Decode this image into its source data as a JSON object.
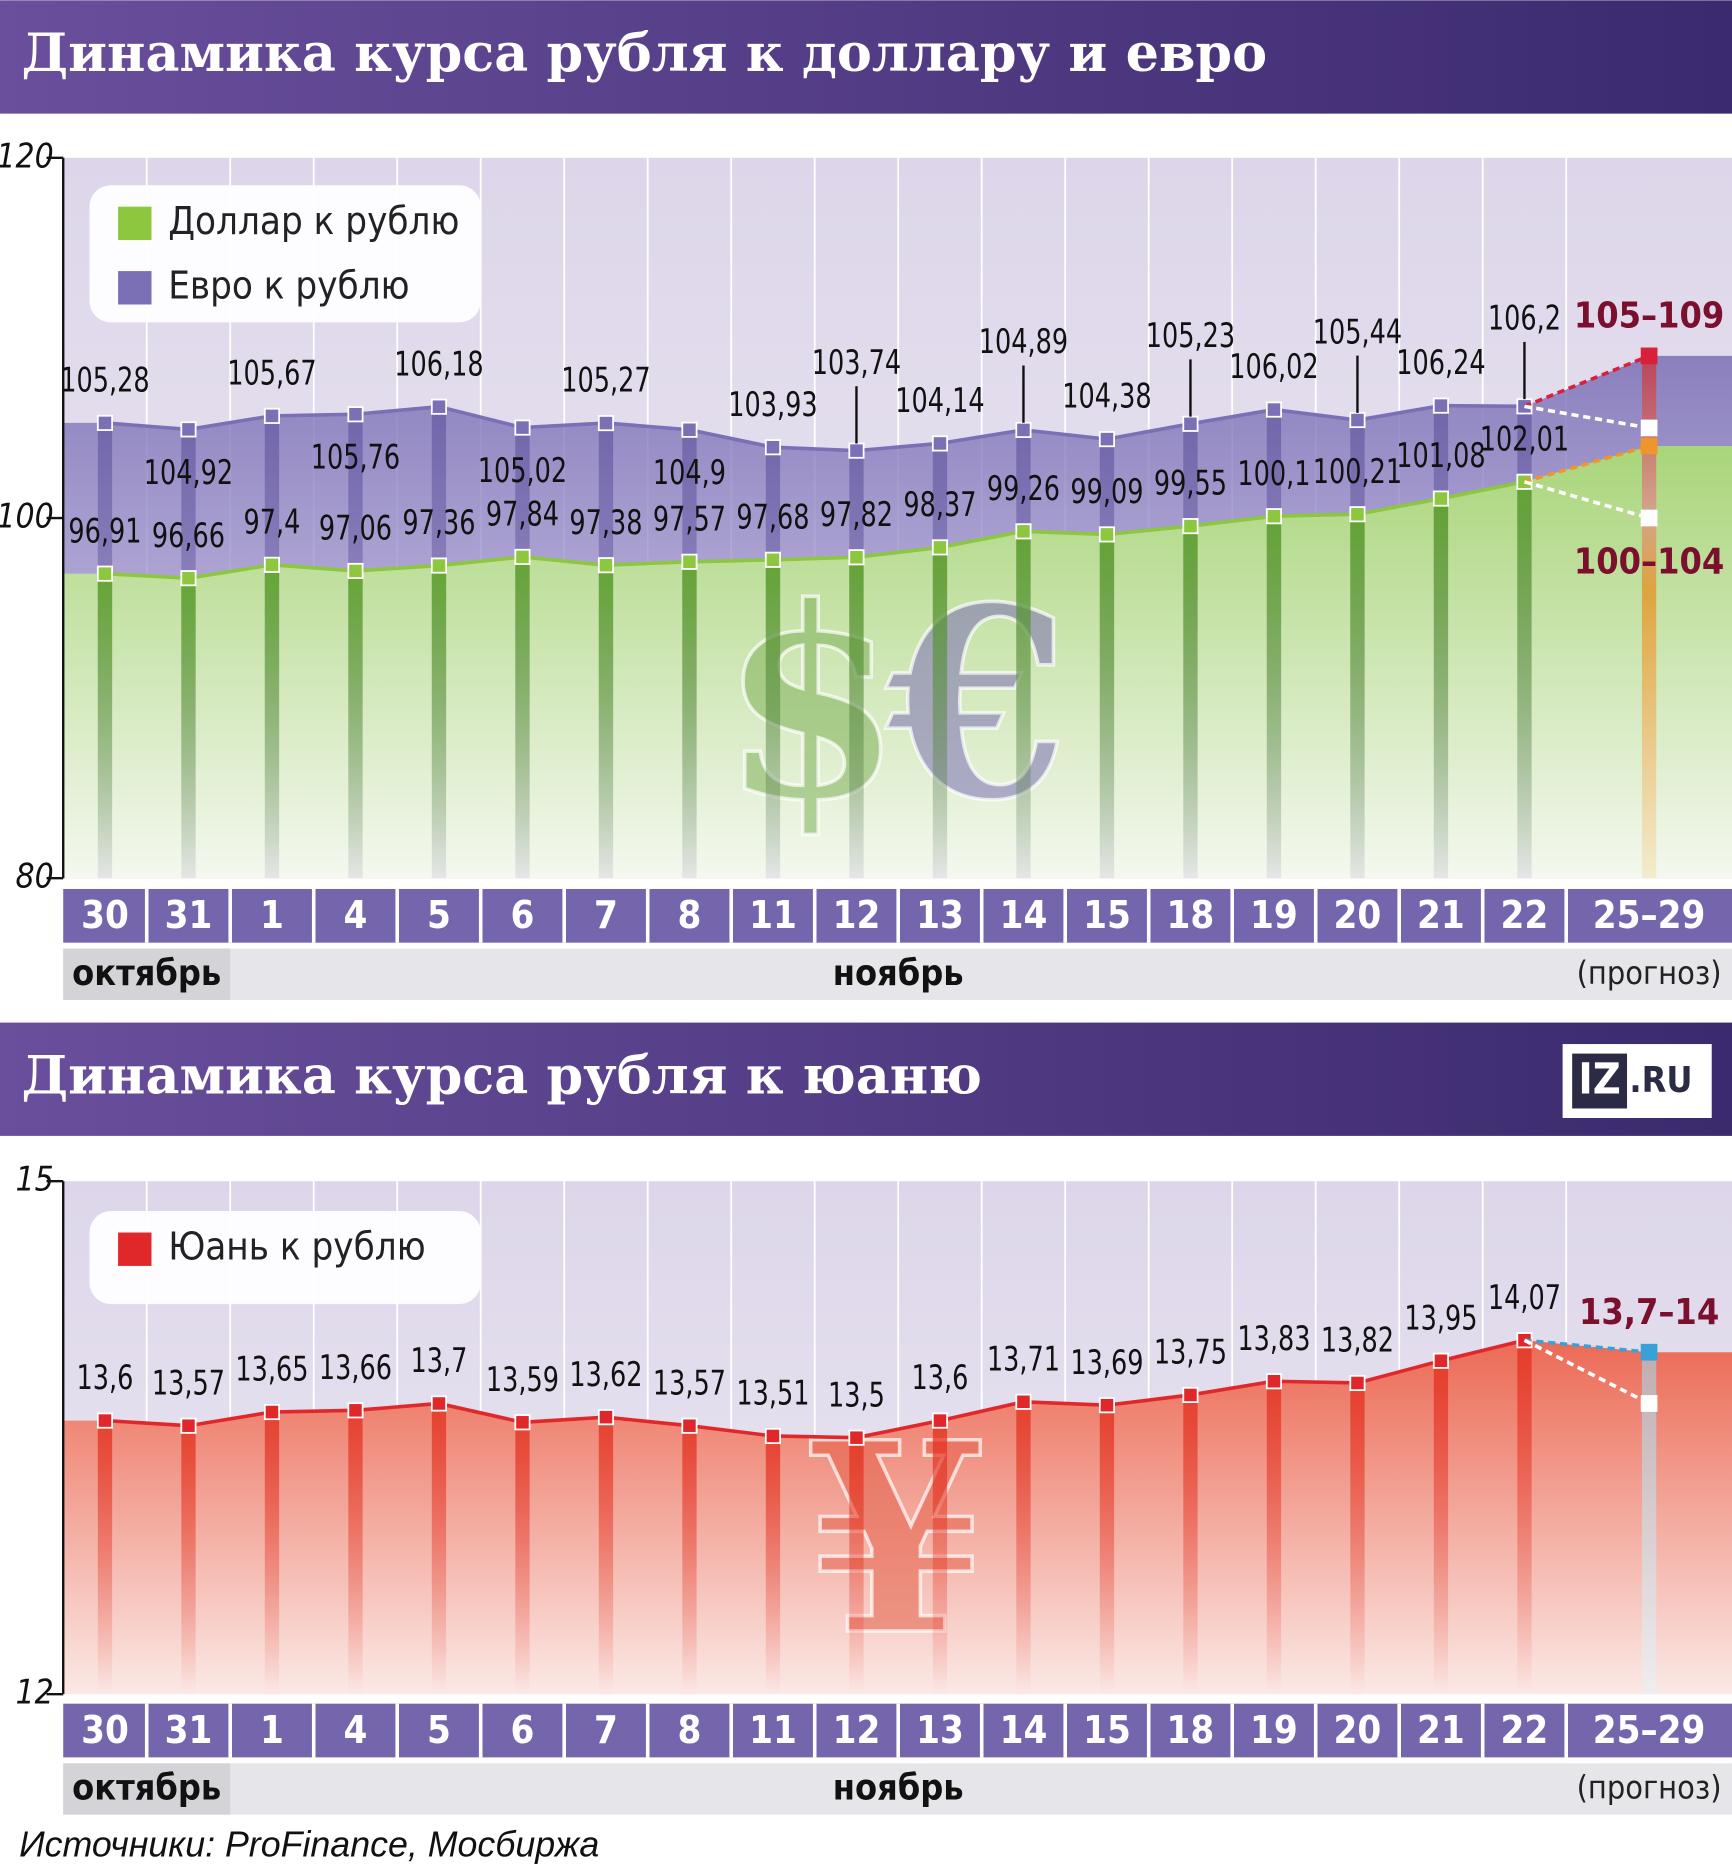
{
  "chart_data": [
    {
      "type": "line",
      "title": "Динамика курса рубля к доллару и евро",
      "categories": [
        "30",
        "31",
        "1",
        "4",
        "5",
        "6",
        "7",
        "8",
        "11",
        "12",
        "13",
        "14",
        "15",
        "18",
        "19",
        "20",
        "21",
        "22",
        "25–29"
      ],
      "months": [
        {
          "name": "октябрь",
          "from": 0,
          "to": 1
        },
        {
          "name": "ноябрь",
          "from": 2,
          "to": 17
        }
      ],
      "forecast_note": "(прогноз)",
      "symbols": [
        "$",
        "€"
      ],
      "ylim": [
        80,
        120
      ],
      "yticks": [
        80,
        100,
        120
      ],
      "series": [
        {
          "name": "Евро к рублю",
          "color": "#7b6fb5",
          "values": [
            105.28,
            104.92,
            105.67,
            105.76,
            106.18,
            105.02,
            105.27,
            104.9,
            103.93,
            103.74,
            104.14,
            104.89,
            104.38,
            105.23,
            106.02,
            105.44,
            106.24,
            106.2,
            null
          ],
          "value_labels": [
            "105,28",
            "104,92",
            "105,67",
            "105,76",
            "106,18",
            "105,02",
            "105,27",
            "104,9",
            "103,93",
            "103,74",
            "104,14",
            "104,89",
            "104,38",
            "105,23",
            "106,02",
            "105,44",
            "106,24",
            "106,2",
            null
          ],
          "forecast": {
            "low": 105,
            "high": 109,
            "label": "105–109",
            "color": "#d8203a"
          }
        },
        {
          "name": "Доллар к рублю",
          "color": "#8dc63f",
          "values": [
            96.91,
            96.66,
            97.4,
            97.06,
            97.36,
            97.84,
            97.38,
            97.57,
            97.68,
            97.82,
            98.37,
            99.26,
            99.09,
            99.55,
            100.1,
            100.21,
            101.08,
            102.01,
            null
          ],
          "value_labels": [
            "96,91",
            "96,66",
            "97,4",
            "97,06",
            "97,36",
            "97,84",
            "97,38",
            "97,57",
            "97,68",
            "97,82",
            "98,37",
            "99,26",
            "99,09",
            "99,55",
            "100,1",
            "100,21",
            "101,08",
            "102,01",
            null
          ],
          "forecast": {
            "low": 100,
            "high": 104,
            "label": "100–104",
            "color": "#f0952e"
          }
        }
      ]
    },
    {
      "type": "line",
      "title": "Динамика курса рубля к юаню",
      "logo": [
        "IZ",
        ".RU"
      ],
      "categories": [
        "30",
        "31",
        "1",
        "4",
        "5",
        "6",
        "7",
        "8",
        "11",
        "12",
        "13",
        "14",
        "15",
        "18",
        "19",
        "20",
        "21",
        "22",
        "25–29"
      ],
      "months": [
        {
          "name": "октябрь",
          "from": 0,
          "to": 1
        },
        {
          "name": "ноябрь",
          "from": 2,
          "to": 17
        }
      ],
      "forecast_note": "(прогноз)",
      "symbols": [
        "¥"
      ],
      "ylim": [
        12,
        15
      ],
      "yticks": [
        12,
        15
      ],
      "series": [
        {
          "name": "Юань к рублю",
          "color": "#e0282b",
          "values": [
            13.6,
            13.57,
            13.65,
            13.66,
            13.7,
            13.59,
            13.62,
            13.57,
            13.51,
            13.5,
            13.6,
            13.71,
            13.69,
            13.75,
            13.83,
            13.82,
            13.95,
            14.07,
            null
          ],
          "value_labels": [
            "13,6",
            "13,57",
            "13,65",
            "13,66",
            "13,7",
            "13,59",
            "13,62",
            "13,57",
            "13,51",
            "13,5",
            "13,6",
            "13,71",
            "13,69",
            "13,75",
            "13,83",
            "13,82",
            "13,95",
            "14,07",
            null
          ],
          "forecast": {
            "low": 13.7,
            "high": 14,
            "label": "13,7–14",
            "color": "#3aa0d8"
          }
        }
      ]
    }
  ],
  "source": "Источники: ProFinance, Мосбиржа"
}
